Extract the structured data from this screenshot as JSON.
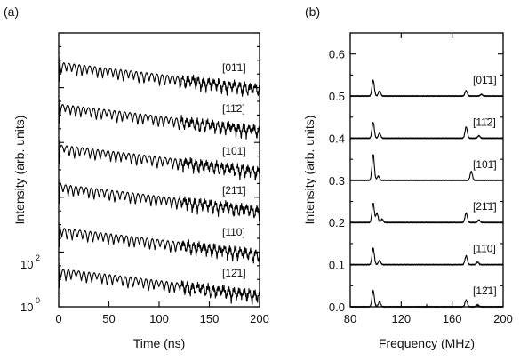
{
  "panel_a_label": "(a)",
  "panel_b_label": "(b)",
  "chart_data": [
    {
      "type": "line",
      "panel": "(a)",
      "xlabel": "Time (ns)",
      "ylabel": "Intensity (arb. units)",
      "xlim": [
        0,
        200
      ],
      "xticks": [
        "0",
        "50",
        "100",
        "150",
        "200"
      ],
      "y_tick_labels": [
        {
          "base": "10",
          "exp": "2"
        },
        {
          "base": "10",
          "exp": "0"
        }
      ],
      "yscale": "log, traces offset vertically",
      "grid": false,
      "description": "Time-domain quantum beat spectra, decaying with strong oscillations, one trace per crystal direction",
      "series": [
        {
          "name": "[01̄1]"
        },
        {
          "name": "[11̄2]"
        },
        {
          "name": "[101̄]"
        },
        {
          "name": "[21̄1̄]"
        },
        {
          "name": "[11̄0]"
        },
        {
          "name": "[12̄1]"
        }
      ]
    },
    {
      "type": "line",
      "panel": "(b)",
      "xlabel": "Frequency (MHz)",
      "ylabel": "Intensity (arb. units)",
      "xlim": [
        80,
        200
      ],
      "ylim": [
        0,
        0.65
      ],
      "xticks": [
        "80",
        "120",
        "160",
        "200"
      ],
      "yticks": [
        "0.0",
        "0.1",
        "0.2",
        "0.3",
        "0.4",
        "0.5",
        "0.6"
      ],
      "grid": false,
      "series": [
        {
          "name": "[01̄1]",
          "baseline": 0.5,
          "peaks": [
            {
              "f": 98,
              "h": 0.038
            },
            {
              "f": 103,
              "h": 0.012
            },
            {
              "f": 171,
              "h": 0.013
            },
            {
              "f": 183,
              "h": 0.004
            }
          ]
        },
        {
          "name": "[11̄2]",
          "baseline": 0.4,
          "peaks": [
            {
              "f": 98,
              "h": 0.038
            },
            {
              "f": 103,
              "h": 0.012
            },
            {
              "f": 171,
              "h": 0.027
            },
            {
              "f": 181,
              "h": 0.006
            }
          ]
        },
        {
          "name": "[101̄]",
          "baseline": 0.3,
          "peaks": [
            {
              "f": 98,
              "h": 0.062
            },
            {
              "f": 102,
              "h": 0.01
            },
            {
              "f": 175,
              "h": 0.021
            }
          ]
        },
        {
          "name": "[21̄1̄]",
          "baseline": 0.2,
          "peaks": [
            {
              "f": 98,
              "h": 0.046
            },
            {
              "f": 101,
              "h": 0.022
            },
            {
              "f": 105,
              "h": 0.008
            },
            {
              "f": 171,
              "h": 0.023
            },
            {
              "f": 181,
              "h": 0.006
            }
          ]
        },
        {
          "name": "[11̄0]",
          "baseline": 0.1,
          "peaks": [
            {
              "f": 98,
              "h": 0.039
            },
            {
              "f": 103,
              "h": 0.01
            },
            {
              "f": 171,
              "h": 0.021
            },
            {
              "f": 180,
              "h": 0.006
            }
          ]
        },
        {
          "name": "[12̄1]",
          "baseline": 0.0,
          "peaks": [
            {
              "f": 98,
              "h": 0.038
            },
            {
              "f": 103,
              "h": 0.012
            },
            {
              "f": 171,
              "h": 0.016
            },
            {
              "f": 180,
              "h": 0.005
            }
          ]
        }
      ]
    }
  ]
}
